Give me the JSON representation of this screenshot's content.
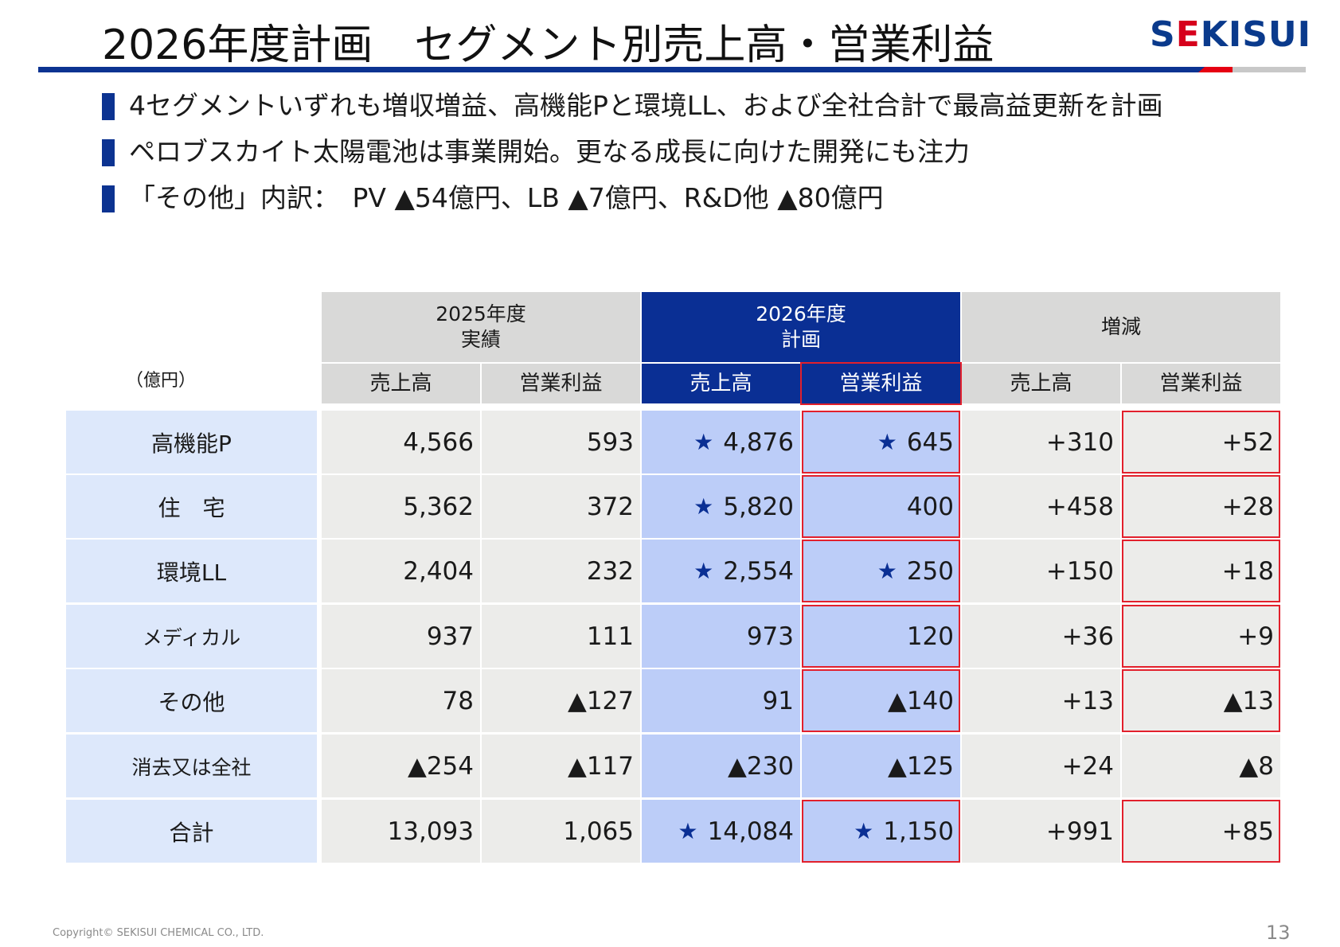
{
  "title": "2026年度計画　セグメント別売上高・営業利益",
  "logo": {
    "text_before": "S",
    "dot": "E",
    "text_after": "KISUI"
  },
  "bullets": [
    "4セグメントいずれも増収増益、高機能Pと環境LL、および全社合計で最高益更新を計画",
    "ペロブスカイト太陽電池は事業開始。更なる成長に向けた開発にも注力",
    "「その他」内訳：　PV ▲54億円、LB ▲7億円、R&D他 ▲80億円"
  ],
  "table": {
    "unit": "（億円）",
    "groups": [
      "2025年度\n実績",
      "2026年度\n計画",
      "増減"
    ],
    "subheaders": [
      "売上高",
      "営業利益",
      "売上高",
      "営業利益",
      "売上高",
      "営業利益"
    ],
    "rows": [
      {
        "label": "高機能P",
        "cells": [
          "4,566",
          "593",
          "4,876",
          "645",
          "+310",
          "+52"
        ],
        "stars": [
          false,
          false,
          true,
          true,
          false,
          false
        ]
      },
      {
        "label": "住　宅",
        "cells": [
          "5,362",
          "372",
          "5,820",
          "400",
          "+458",
          "+28"
        ],
        "stars": [
          false,
          false,
          true,
          false,
          false,
          false
        ]
      },
      {
        "label": "環境LL",
        "cells": [
          "2,404",
          "232",
          "2,554",
          "250",
          "+150",
          "+18"
        ],
        "stars": [
          false,
          false,
          true,
          true,
          false,
          false
        ]
      },
      {
        "label": "メディカル",
        "cells": [
          "937",
          "111",
          "973",
          "120",
          "+36",
          "+9"
        ],
        "stars": [
          false,
          false,
          false,
          false,
          false,
          false
        ]
      },
      {
        "label": "その他",
        "cells": [
          "78",
          "▲127",
          "91",
          "▲140",
          "+13",
          "▲13"
        ],
        "stars": [
          false,
          false,
          false,
          false,
          false,
          false
        ]
      },
      {
        "label": "消去又は全社",
        "cells": [
          "▲254",
          "▲117",
          "▲230",
          "▲125",
          "+24",
          "▲8"
        ],
        "stars": [
          false,
          false,
          false,
          false,
          false,
          false
        ]
      },
      {
        "label": "合計",
        "cells": [
          "13,093",
          "1,065",
          "14,084",
          "1,150",
          "+991",
          "+85"
        ],
        "stars": [
          false,
          false,
          true,
          true,
          false,
          false
        ]
      }
    ],
    "star_symbol": "★"
  },
  "colors": {
    "navy": "#0a2f94",
    "highlight": "#bccdf8",
    "label_bg": "#dde8fb",
    "red_outline": "#e2202c"
  },
  "copyright": "Copyright© SEKISUI CHEMICAL CO., LTD.",
  "page_number": "13"
}
